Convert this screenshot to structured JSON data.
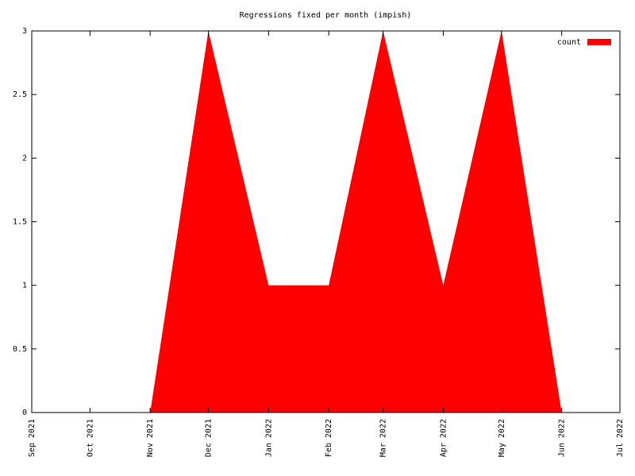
{
  "chart_data": {
    "type": "area",
    "title": "Regressions fixed per month (impish)",
    "x": [
      "2021-11",
      "2021-12",
      "2022-01",
      "2022-02",
      "2022-03",
      "2022-04",
      "2022-05",
      "2022-06"
    ],
    "series": [
      {
        "name": "count",
        "color": "#ff0000",
        "values": [
          0,
          3,
          1,
          1,
          3,
          1,
          3,
          0
        ]
      }
    ],
    "xlim": [
      "2021-09",
      "2022-07"
    ],
    "xticks": [
      {
        "value": "2021-09",
        "label": "Sep 2021"
      },
      {
        "value": "2021-10",
        "label": "Oct 2021"
      },
      {
        "value": "2021-11",
        "label": "Nov 2021"
      },
      {
        "value": "2021-12",
        "label": "Dec 2021"
      },
      {
        "value": "2022-01",
        "label": "Jan 2022"
      },
      {
        "value": "2022-02",
        "label": "Feb 2022"
      },
      {
        "value": "2022-03",
        "label": "Mar 2022"
      },
      {
        "value": "2022-04",
        "label": "Apr 2022"
      },
      {
        "value": "2022-05",
        "label": "May 2022"
      },
      {
        "value": "2022-06",
        "label": "Jun 2022"
      },
      {
        "value": "2022-07",
        "label": "Jul 2022"
      }
    ],
    "ylim": [
      0,
      3
    ],
    "yticks": [
      0,
      0.5,
      1,
      1.5,
      2,
      2.5,
      3
    ],
    "legend": "top-right",
    "grid": false
  }
}
